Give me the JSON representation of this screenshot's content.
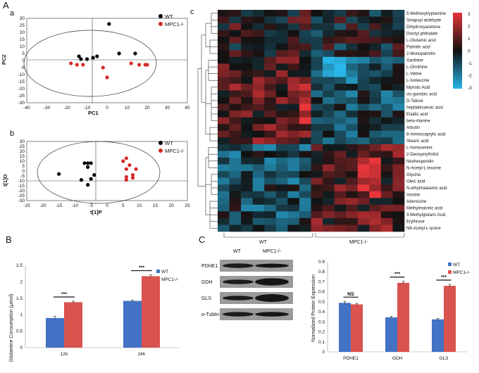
{
  "panels": {
    "A": "A",
    "B": "B",
    "C": "C",
    "a": "a",
    "b": "b",
    "c": "c"
  },
  "colors": {
    "wt": "#000000",
    "mpc": "#d62a2a",
    "bar_wt": "#4472c4",
    "bar_mpc": "#d9534f"
  },
  "legend": {
    "wt": "WT",
    "mpc": "MPC1-/-"
  },
  "pca": {
    "xlabel": "PC1",
    "ylabel": "PC2",
    "xticks": [
      "-40",
      "-30",
      "-20",
      "-10",
      "0",
      "10",
      "20",
      "30",
      "40"
    ],
    "yticks": [
      "30",
      "25",
      "20",
      "15",
      "10",
      "5",
      "0",
      "-5",
      "-10",
      "-15",
      "-20",
      "-25",
      "-30"
    ],
    "wt_points": [
      [
        1,
        26
      ],
      [
        -14,
        3
      ],
      [
        -13,
        1
      ],
      [
        -10,
        1
      ],
      [
        -7,
        2
      ],
      [
        -5,
        3
      ],
      [
        6,
        5
      ],
      [
        14,
        5
      ]
    ],
    "mpc_points": [
      [
        -18,
        -2
      ],
      [
        -15,
        -3
      ],
      [
        -12,
        -3
      ],
      [
        -2,
        -5
      ],
      [
        0,
        -12
      ],
      [
        12,
        -2
      ],
      [
        16,
        -3
      ],
      [
        19,
        -3
      ],
      [
        20,
        -3
      ]
    ]
  },
  "plsda": {
    "xlabel": "t[1]P",
    "ylabel": "t[1]O",
    "xticks": [
      "-25",
      "-20",
      "-15",
      "-10",
      "-5",
      "0",
      "5",
      "10",
      "15",
      "20",
      "25"
    ],
    "yticks": [
      "30",
      "25",
      "20",
      "15",
      "10",
      "5",
      "0",
      "-5",
      "-10",
      "-15",
      "-20",
      "-25",
      "-30"
    ],
    "wt_points": [
      [
        -15,
        -3
      ],
      [
        -8,
        -9
      ],
      [
        -7,
        8
      ],
      [
        -6,
        8
      ],
      [
        -6,
        4
      ],
      [
        -6,
        -14
      ],
      [
        -5,
        8
      ],
      [
        -5,
        -8
      ],
      [
        -4,
        -4
      ]
    ],
    "mpc_points": [
      [
        5,
        10
      ],
      [
        6,
        13
      ],
      [
        6,
        2
      ],
      [
        7,
        6
      ],
      [
        6,
        -9
      ],
      [
        6,
        -6
      ],
      [
        8,
        -7
      ],
      [
        8,
        -4
      ],
      [
        9,
        2
      ]
    ]
  },
  "heatmap": {
    "metabolites": [
      "5-Methoxytryptamine",
      "Sinapoyl aldehyde",
      "Dihydroxyacetone",
      "Dioctyl phthalate",
      "L-Glutamic acid",
      "Palmitic acid",
      "2-Monopalmitin",
      "Xanthine",
      "L-Ornithine",
      "L-Valine",
      "L-Isoleucine",
      "Myristic Acid",
      "cis-gondoic acid",
      "D-Talose",
      "heptadecanoic acid",
      "Elaidic acid",
      "beta-Alanine",
      "Arbutin",
      "8-Aminocaprylic acid",
      "Stearic acid",
      "L-homoserine",
      "2-Deoxyerythritol",
      "Neohesperidin",
      "N-Acetyl-L-leucine",
      "Glycine",
      "Oleic acid",
      "N-ethylmaleamic acid",
      "Inosine",
      "Adenosine",
      "Methylmalonic acid",
      "3-Methylglutaric Acid",
      "Erythrose",
      "N6-Acetyl-L-lysine"
    ],
    "group_wt": "WT",
    "group_mpc": "MPC1-/-",
    "scale_labels": [
      "3",
      "2",
      "1",
      "0",
      "-1",
      "-2",
      "-3"
    ]
  },
  "chart_data": [
    {
      "type": "bar",
      "title": "",
      "ylabel": "Glutamine Consumption (μmol)",
      "categories": [
        "12h",
        "24h"
      ],
      "series": [
        {
          "name": "WT",
          "values": [
            0.9,
            1.42
          ],
          "errors": [
            0.05,
            0.02
          ]
        },
        {
          "name": "MPC1-/-",
          "values": [
            1.38,
            2.17
          ],
          "errors": [
            0.03,
            0.04
          ]
        }
      ],
      "ylim": [
        0,
        2.5
      ],
      "yticks": [
        "0",
        "0.5",
        "1",
        "1.5",
        "2",
        "2.5"
      ],
      "significance": [
        "***",
        "***"
      ]
    },
    {
      "type": "bar",
      "title": "",
      "ylabel": "Normalized Protein Expression",
      "categories": [
        "PDHE1",
        "GDH",
        "GLS"
      ],
      "series": [
        {
          "name": "WT",
          "values": [
            0.49,
            0.345,
            0.325
          ],
          "errors": [
            0.015,
            0.01,
            0.01
          ]
        },
        {
          "name": "MPC1-/-",
          "values": [
            0.475,
            0.69,
            0.66
          ],
          "errors": [
            0.01,
            0.015,
            0.015
          ]
        }
      ],
      "ylim": [
        0,
        0.9
      ],
      "yticks": [
        "0",
        "0.1",
        "0.2",
        "0.3",
        "0.4",
        "0.5",
        "0.6",
        "0.7",
        "0.8",
        "0.9"
      ],
      "significance": [
        "NS",
        "***",
        "***"
      ]
    }
  ],
  "blot": {
    "col_wt": "WT",
    "col_mpc": "MPC1-/-",
    "rows": [
      "PDHE1",
      "GDH",
      "GLS",
      "α-Tublin"
    ]
  }
}
